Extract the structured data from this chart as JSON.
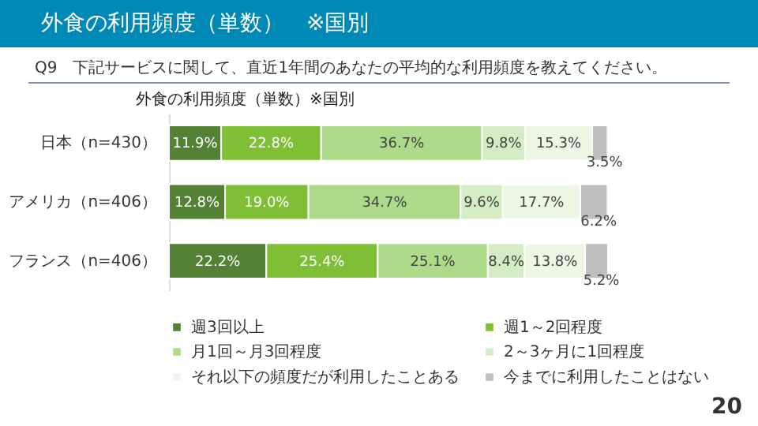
{
  "chart_data": {
    "type": "bar",
    "orientation": "horizontal",
    "stacked": true,
    "title": "外食の利用頻度（単数）　※国別",
    "subtitle": "Q9　下記サービスに関して、直近1年間のあなたの平均的な利用頻度を教えてください。",
    "annotations": [
      "外食の利用頻度（単数）※国別",
      "20"
    ],
    "categories": [
      "日本（n=430）",
      "アメリカ（n=406）",
      "フランス（n=406）"
    ],
    "legend": "bottom",
    "series": [
      {
        "name": "週3回以上",
        "color": "#548235",
        "values": [
          11.9,
          12.8,
          22.2
        ],
        "value_labels": [
          "11.9%",
          "12.8%",
          "22.2%"
        ]
      },
      {
        "name": "週1～2回程度",
        "color": "#7fbf36",
        "values": [
          22.8,
          19.0,
          25.4
        ],
        "value_labels": [
          "22.8%",
          "19.0%",
          "25.4%"
        ]
      },
      {
        "name": "月1回～月3回程度",
        "color": "#aedb8a",
        "values": [
          36.7,
          34.7,
          25.1
        ],
        "value_labels": [
          "36.7%",
          "34.7%",
          "25.1%"
        ]
      },
      {
        "name": "2～3ヶ月に1回程度",
        "color": "#d5edc4",
        "values": [
          9.8,
          9.6,
          8.4
        ],
        "value_labels": [
          "9.8%",
          "9.6%",
          "8.4%"
        ]
      },
      {
        "name": "それ以下の頻度だが利用したことある",
        "color": "#ecf7e4",
        "values": [
          15.3,
          17.7,
          13.8
        ],
        "value_labels": [
          "15.3%",
          "17.7%",
          "13.8%"
        ]
      },
      {
        "name": "今までに利用したことはない",
        "color": "#bfbfbf",
        "values": [
          3.5,
          6.2,
          5.2
        ],
        "value_labels": [
          "3.5%",
          "6.2%",
          "5.2%"
        ]
      }
    ]
  }
}
